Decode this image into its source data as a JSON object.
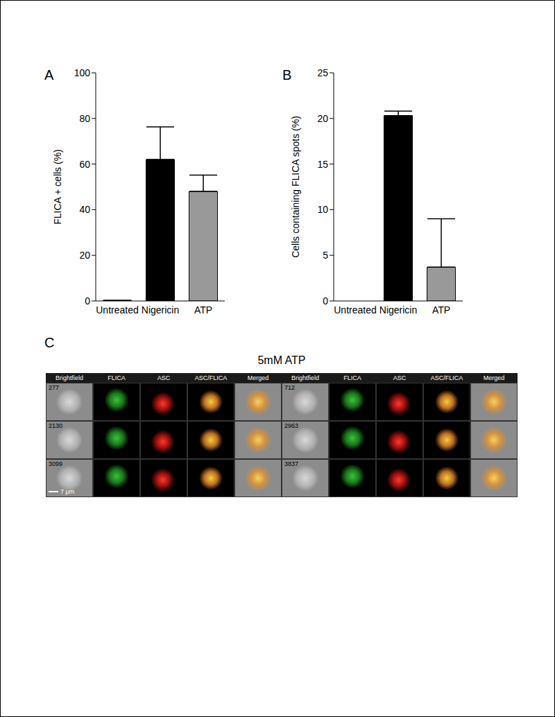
{
  "chart_data": [
    {
      "type": "bar",
      "title": "A",
      "categories": [
        "Untreated",
        "Nigericin",
        "ATP"
      ],
      "values": [
        0.2,
        62,
        48
      ],
      "errors": [
        0,
        14.3,
        7.2
      ],
      "colors": [
        "#000000",
        "#000000",
        "#999999"
      ],
      "ylabel": "FLICA + cells (%)",
      "ylim": [
        0,
        100
      ],
      "yticks": [
        0,
        20,
        40,
        60,
        80,
        100
      ]
    },
    {
      "type": "bar",
      "title": "B",
      "categories": [
        "Untreated",
        "Nigericin",
        "ATP"
      ],
      "values": [
        0,
        20.3,
        3.7
      ],
      "errors": [
        0,
        0.5,
        5.3
      ],
      "colors": [
        "#000000",
        "#000000",
        "#999999"
      ],
      "ylabel": "Cells containing FLICA spots (%)",
      "ylim": [
        0,
        25
      ],
      "yticks": [
        0,
        5,
        10,
        15,
        20,
        25
      ]
    }
  ],
  "image_panel": {
    "panel_label": "C",
    "title": "5mM ATP",
    "columns": [
      "Brightfield",
      "FLICA",
      "ASC",
      "ASC/FLICA",
      "Merged"
    ],
    "cell_ids": [
      277,
      712,
      2130,
      2963,
      3099,
      3837
    ],
    "scale_bar": "7 μm"
  }
}
